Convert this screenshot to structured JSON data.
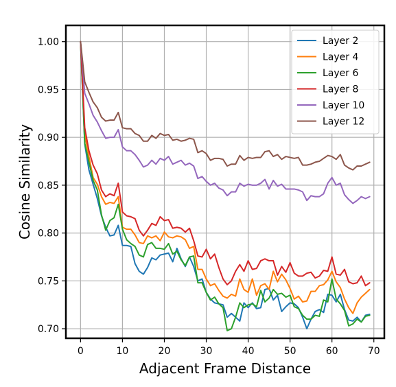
{
  "chart_data": {
    "type": "line",
    "xlabel": "Adjacent Frame Distance",
    "ylabel": "Cosine Similarity",
    "xlim": [
      -3.5,
      72.5
    ],
    "ylim": [
      0.69,
      1.017
    ],
    "xticks": [
      0,
      10,
      20,
      30,
      40,
      50,
      60,
      70
    ],
    "yticks": [
      0.7,
      0.75,
      0.8,
      0.85,
      0.9,
      0.95,
      1.0
    ],
    "xtick_labels": [
      "0",
      "10",
      "20",
      "30",
      "40",
      "50",
      "60",
      "70"
    ],
    "ytick_labels": [
      "0.70",
      "0.75",
      "0.80",
      "0.85",
      "0.90",
      "0.95",
      "1.00"
    ],
    "grid": true,
    "legend_position": "top-right",
    "x": [
      0,
      1,
      2,
      3,
      4,
      5,
      6,
      7,
      8,
      9,
      10,
      11,
      12,
      13,
      14,
      15,
      16,
      17,
      18,
      19,
      20,
      21,
      22,
      23,
      24,
      25,
      26,
      27,
      28,
      29,
      30,
      31,
      32,
      33,
      34,
      35,
      36,
      37,
      38,
      39,
      40,
      41,
      42,
      43,
      44,
      45,
      46,
      47,
      48,
      49,
      50,
      51,
      52,
      53,
      54,
      55,
      56,
      57,
      58,
      59,
      60,
      61,
      62,
      63,
      64,
      65,
      66,
      67,
      68,
      69
    ],
    "series": [
      {
        "name": "Layer 2",
        "color": "#1f77b4",
        "values": [
          1.0,
          0.893,
          0.866,
          0.851,
          0.836,
          0.818,
          0.806,
          0.797,
          0.798,
          0.808,
          0.787,
          0.787,
          0.786,
          0.768,
          0.76,
          0.757,
          0.764,
          0.774,
          0.772,
          0.777,
          0.778,
          0.779,
          0.77,
          0.784,
          0.773,
          0.765,
          0.775,
          0.765,
          0.75,
          0.752,
          0.738,
          0.731,
          0.727,
          0.726,
          0.725,
          0.712,
          0.716,
          0.712,
          0.708,
          0.727,
          0.722,
          0.727,
          0.721,
          0.722,
          0.741,
          0.742,
          0.73,
          0.735,
          0.718,
          0.723,
          0.727,
          0.726,
          0.722,
          0.712,
          0.7,
          0.71,
          0.718,
          0.72,
          0.717,
          0.736,
          0.735,
          0.728,
          0.736,
          0.72,
          0.709,
          0.708,
          0.712,
          0.707,
          0.714,
          0.715
        ]
      },
      {
        "name": "Layer 4",
        "color": "#ff7f0e",
        "values": [
          1.0,
          0.903,
          0.88,
          0.858,
          0.851,
          0.838,
          0.83,
          0.832,
          0.831,
          0.838,
          0.806,
          0.804,
          0.804,
          0.798,
          0.79,
          0.789,
          0.797,
          0.795,
          0.797,
          0.792,
          0.801,
          0.796,
          0.795,
          0.797,
          0.796,
          0.793,
          0.784,
          0.786,
          0.762,
          0.762,
          0.752,
          0.745,
          0.747,
          0.74,
          0.734,
          0.732,
          0.736,
          0.734,
          0.752,
          0.741,
          0.738,
          0.752,
          0.735,
          0.745,
          0.747,
          0.741,
          0.76,
          0.749,
          0.757,
          0.751,
          0.742,
          0.731,
          0.734,
          0.728,
          0.729,
          0.739,
          0.739,
          0.745,
          0.746,
          0.751,
          0.76,
          0.749,
          0.743,
          0.731,
          0.722,
          0.716,
          0.727,
          0.733,
          0.737,
          0.741
        ]
      },
      {
        "name": "Layer 6",
        "color": "#2ca02c",
        "values": [
          1.0,
          0.894,
          0.874,
          0.855,
          0.845,
          0.819,
          0.803,
          0.813,
          0.816,
          0.83,
          0.804,
          0.793,
          0.789,
          0.786,
          0.777,
          0.775,
          0.788,
          0.79,
          0.784,
          0.784,
          0.783,
          0.789,
          0.778,
          0.781,
          0.772,
          0.766,
          0.775,
          0.776,
          0.748,
          0.748,
          0.738,
          0.73,
          0.733,
          0.726,
          0.722,
          0.698,
          0.7,
          0.712,
          0.727,
          0.722,
          0.725,
          0.726,
          0.723,
          0.74,
          0.728,
          0.732,
          0.741,
          0.736,
          0.737,
          0.733,
          0.735,
          0.723,
          0.721,
          0.714,
          0.71,
          0.71,
          0.714,
          0.713,
          0.73,
          0.728,
          0.752,
          0.731,
          0.726,
          0.719,
          0.703,
          0.705,
          0.71,
          0.707,
          0.713,
          0.714
        ]
      },
      {
        "name": "Layer 8",
        "color": "#d62728",
        "values": [
          1.0,
          0.91,
          0.886,
          0.871,
          0.862,
          0.845,
          0.838,
          0.841,
          0.839,
          0.852,
          0.822,
          0.818,
          0.817,
          0.815,
          0.803,
          0.797,
          0.803,
          0.81,
          0.808,
          0.817,
          0.813,
          0.814,
          0.805,
          0.806,
          0.805,
          0.801,
          0.805,
          0.792,
          0.776,
          0.775,
          0.783,
          0.773,
          0.778,
          0.764,
          0.752,
          0.746,
          0.75,
          0.76,
          0.767,
          0.76,
          0.771,
          0.762,
          0.763,
          0.771,
          0.773,
          0.771,
          0.771,
          0.756,
          0.765,
          0.759,
          0.769,
          0.758,
          0.755,
          0.755,
          0.758,
          0.759,
          0.753,
          0.755,
          0.761,
          0.76,
          0.775,
          0.757,
          0.756,
          0.762,
          0.749,
          0.747,
          0.748,
          0.755,
          0.745,
          0.748
        ]
      },
      {
        "name": "Layer 10",
        "color": "#9467bd",
        "values": [
          1.0,
          0.946,
          0.935,
          0.923,
          0.916,
          0.907,
          0.899,
          0.9,
          0.9,
          0.908,
          0.89,
          0.886,
          0.886,
          0.882,
          0.876,
          0.869,
          0.871,
          0.876,
          0.872,
          0.878,
          0.876,
          0.88,
          0.872,
          0.874,
          0.876,
          0.871,
          0.873,
          0.87,
          0.857,
          0.859,
          0.854,
          0.85,
          0.852,
          0.847,
          0.845,
          0.839,
          0.843,
          0.843,
          0.852,
          0.849,
          0.851,
          0.85,
          0.85,
          0.852,
          0.856,
          0.846,
          0.855,
          0.849,
          0.851,
          0.846,
          0.846,
          0.846,
          0.845,
          0.843,
          0.834,
          0.839,
          0.838,
          0.838,
          0.841,
          0.852,
          0.858,
          0.85,
          0.852,
          0.84,
          0.835,
          0.831,
          0.834,
          0.838,
          0.836,
          0.838
        ]
      },
      {
        "name": "Layer 12",
        "color": "#8c564b",
        "values": [
          1.0,
          0.958,
          0.947,
          0.937,
          0.931,
          0.921,
          0.917,
          0.918,
          0.918,
          0.926,
          0.91,
          0.909,
          0.909,
          0.904,
          0.902,
          0.896,
          0.896,
          0.902,
          0.899,
          0.904,
          0.902,
          0.903,
          0.897,
          0.898,
          0.896,
          0.897,
          0.899,
          0.898,
          0.884,
          0.886,
          0.883,
          0.876,
          0.878,
          0.878,
          0.877,
          0.87,
          0.872,
          0.872,
          0.881,
          0.876,
          0.879,
          0.878,
          0.879,
          0.879,
          0.885,
          0.886,
          0.88,
          0.882,
          0.877,
          0.88,
          0.879,
          0.878,
          0.879,
          0.871,
          0.871,
          0.872,
          0.874,
          0.875,
          0.878,
          0.881,
          0.88,
          0.877,
          0.882,
          0.871,
          0.868,
          0.866,
          0.87,
          0.87,
          0.872,
          0.874
        ]
      }
    ]
  }
}
